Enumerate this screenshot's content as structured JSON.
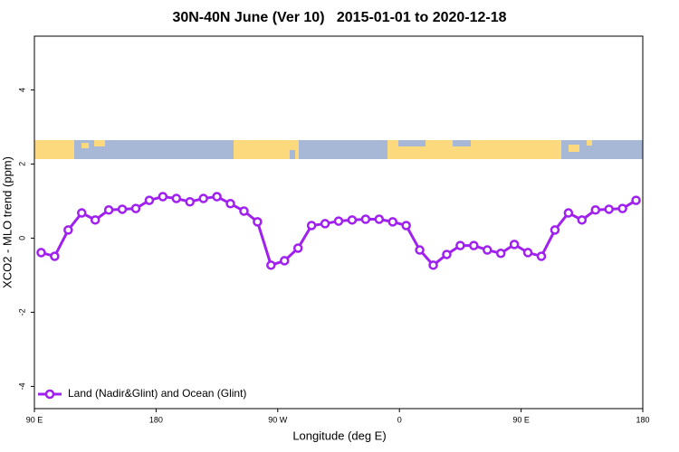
{
  "chart_data": {
    "type": "line",
    "title": "30N-40N June (Ver 10)   2015-01-01 to 2020-12-18",
    "x_label": "Longitude (deg E)",
    "y_label": "XCO2 - MLO trend (ppm)",
    "x": [
      95,
      105,
      115,
      125,
      135,
      145,
      155,
      165,
      175,
      185,
      195,
      205,
      215,
      225,
      235,
      245,
      255,
      265,
      275,
      285,
      295,
      305,
      315,
      325,
      335,
      345,
      355,
      365,
      375,
      385,
      395,
      405,
      415,
      425,
      435,
      445,
      455,
      465,
      475,
      485,
      495,
      505,
      515,
      525,
      535
    ],
    "series": [
      {
        "name": "Land (Nadir&Glint) and Ocean (Glint)",
        "color": "#a020f0",
        "values": [
          -0.39,
          -0.49,
          0.22,
          0.68,
          0.49,
          0.76,
          0.78,
          0.8,
          1.02,
          1.12,
          1.07,
          0.98,
          1.07,
          1.12,
          0.93,
          0.73,
          0.44,
          -0.73,
          -0.61,
          -0.27,
          0.34,
          0.39,
          0.46,
          0.49,
          0.51,
          0.51,
          0.44,
          0.34,
          -0.32,
          -0.73,
          -0.44,
          -0.2,
          -0.2,
          -0.32,
          -0.41,
          -0.17,
          -0.39,
          -0.49,
          0.22,
          0.68,
          0.49,
          0.76,
          0.78,
          0.8,
          1.02
        ]
      }
    ],
    "xlim": [
      90,
      540
    ],
    "xticks": [
      {
        "value": 90,
        "label": "90 E"
      },
      180,
      {
        "value": 270,
        "label": "90 W"
      },
      {
        "value": 360,
        "label": "0"
      },
      {
        "value": 450,
        "label": "90 E"
      },
      {
        "value": 540,
        "label": "180"
      }
    ],
    "ylim": [
      -4.6,
      5.45
    ],
    "yticks": [
      -4,
      -2,
      0,
      2,
      4
    ],
    "legend": "bottom-left"
  }
}
